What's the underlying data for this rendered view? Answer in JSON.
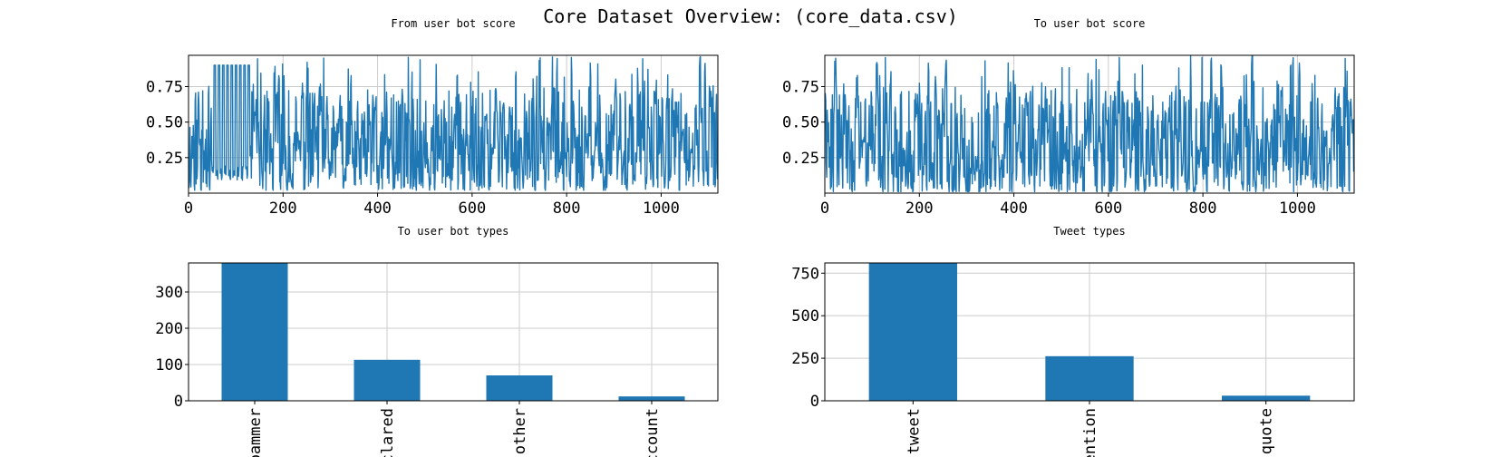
{
  "figure_title": "Core Dataset Overview: (core_data.csv)",
  "colors": {
    "series": "#1f77b4",
    "grid": "#cccccc",
    "frame": "#000000",
    "background": "#ffffff"
  },
  "chart_data": [
    {
      "type": "line",
      "title": "From user bot score",
      "xlabel": "",
      "ylabel": "",
      "xlim": [
        0,
        1120
      ],
      "ylim": [
        0.0,
        0.97
      ],
      "xticks": [
        0,
        200,
        400,
        600,
        800,
        1000
      ],
      "xtick_labels": [
        "0",
        "200",
        "400",
        "600",
        "800",
        "1000"
      ],
      "yticks": [
        0.25,
        0.5,
        0.75
      ],
      "ytick_labels": [
        "0.25",
        "0.50",
        "0.75"
      ],
      "grid": true,
      "n_points": 1120,
      "series": [
        {
          "values_summary": {
            "min": 0.02,
            "max": 0.96,
            "typical_range": [
              0.05,
              0.9
            ]
          }
        }
      ]
    },
    {
      "type": "line",
      "title": "To user bot score",
      "xlabel": "",
      "ylabel": "",
      "xlim": [
        0,
        1120
      ],
      "ylim": [
        0.0,
        0.97
      ],
      "xticks": [
        0,
        200,
        400,
        600,
        800,
        1000
      ],
      "xtick_labels": [
        "0",
        "200",
        "400",
        "600",
        "800",
        "1000"
      ],
      "yticks": [
        0.25,
        0.5,
        0.75
      ],
      "ytick_labels": [
        "0.25",
        "0.50",
        "0.75"
      ],
      "grid": true,
      "n_points": 1120,
      "series": [
        {
          "values_summary": {
            "min": 0.01,
            "max": 0.97,
            "typical_range": [
              0.03,
              0.9
            ]
          }
        }
      ]
    },
    {
      "type": "bar",
      "title": "To user bot types",
      "categories": [
        "spammer",
        "declared",
        "other",
        "account"
      ],
      "tick_labels_visible": [
        "pammer",
        "clared",
        "other",
        "ccount"
      ],
      "values": [
        380,
        113,
        70,
        12
      ],
      "ylim": [
        0,
        380
      ],
      "yticks": [
        0,
        100,
        200,
        300
      ],
      "ytick_labels": [
        "0",
        "100",
        "200",
        "300"
      ],
      "grid": true
    },
    {
      "type": "bar",
      "title": "Tweet types",
      "categories": [
        "tweet",
        "mention",
        "quote"
      ],
      "tick_labels_visible": [
        "tweet",
        "ention",
        "quote"
      ],
      "values": [
        810,
        262,
        30
      ],
      "ylim": [
        0,
        810
      ],
      "yticks": [
        0,
        250,
        500,
        750
      ],
      "ytick_labels": [
        "0",
        "250",
        "500",
        "750"
      ],
      "grid": true
    }
  ]
}
